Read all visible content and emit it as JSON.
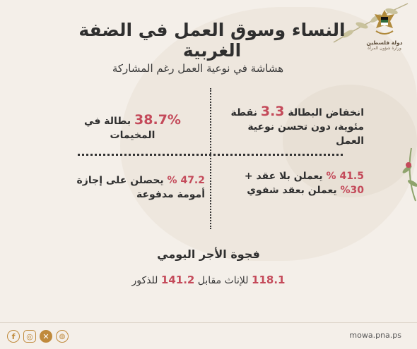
{
  "logo": {
    "line1": "دولة فلسطين",
    "line2": "وزارة شؤون المرأة"
  },
  "title": "النساء وسوق العمل في الضفة الغربية",
  "subtitle": "هشاشة في نوعية العمل رغم المشاركة",
  "cells": {
    "top_right": {
      "pre": "انخفاض البطالة ",
      "num": "3.3",
      "post": " نقطة مئوية، دون تحسن نوعية العمل"
    },
    "top_left": {
      "num": "38.7%",
      "text": " بطالة في المخيمات"
    },
    "bottom_right": {
      "num1": "41.5 %",
      "mid": " يعملن بلا عقد + ",
      "num2": "30%",
      "post": " يعملن بعقد شفوي"
    },
    "bottom_left": {
      "num": "47.2 %",
      "text": " يحصلن على إجازة أمومة مدفوعة"
    }
  },
  "wage_gap": {
    "title": "فجوة الأجر اليومي",
    "female_value": "118.1",
    "female_label": " للإناث مقابل ",
    "male_value": "141.2",
    "male_label": " للذكور"
  },
  "footer": {
    "website": "mowa.pna.ps",
    "socials": [
      "facebook-icon",
      "instagram-icon",
      "x-icon",
      "globe-icon"
    ]
  },
  "colors": {
    "accent": "#c44a5a",
    "text": "#2f2f2f",
    "background": "#f4efe9",
    "social": "#c08a3c"
  }
}
